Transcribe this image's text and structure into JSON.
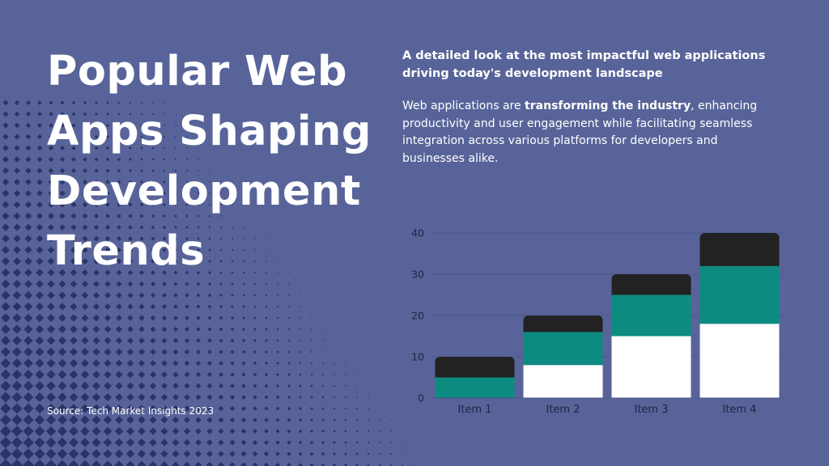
{
  "title": "Popular Web Apps Shaping Development Trends",
  "subtitle": "A detailed look at the most impactful web applications driving today's development landscape",
  "body": {
    "before": "Web applications are ",
    "bold": "transforming the industry",
    "after": ", enhancing productivity and user engagement while facilitating seamless integration across various platforms for developers and businesses alike."
  },
  "source": "Source: Tech Market Insights 2023",
  "colors": {
    "background": "#586499",
    "halftone": "#2a3468",
    "series_bottom": "#ffffff",
    "series_middle": "#0e8b80",
    "series_top": "#222222",
    "axis_text": "#1e2340",
    "gridline": "#4a5586"
  },
  "chart_data": {
    "type": "bar",
    "stacked": true,
    "categories": [
      "Item 1",
      "Item 2",
      "Item 3",
      "Item 4"
    ],
    "series": [
      {
        "values": [
          0,
          8,
          15,
          18
        ],
        "color": "#ffffff"
      },
      {
        "values": [
          5,
          8,
          10,
          14
        ],
        "color": "#0e8b80"
      },
      {
        "values": [
          5,
          4,
          5,
          8
        ],
        "color": "#222222"
      }
    ],
    "ylim": [
      0,
      40
    ],
    "yticks": [
      0,
      10,
      20,
      30,
      40
    ],
    "grid": true,
    "legend": "none"
  }
}
